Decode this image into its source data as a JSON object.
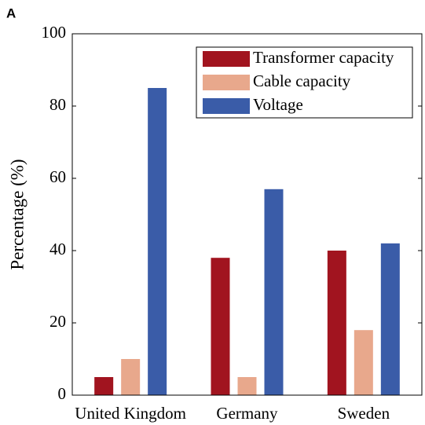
{
  "chart_data": {
    "type": "bar",
    "panel_label": "A",
    "ylabel": "Percentage (%)",
    "categories": [
      "United Kingdom",
      "Germany",
      "Sweden"
    ],
    "series": [
      {
        "name": "Transformer capacity",
        "color": "#a1141f",
        "values": [
          5,
          38,
          40
        ]
      },
      {
        "name": "Cable capacity",
        "color": "#e8a88c",
        "values": [
          10,
          5,
          18
        ]
      },
      {
        "name": "Voltage",
        "color": "#3a5ca8",
        "values": [
          85,
          57,
          42
        ]
      }
    ],
    "ylim": [
      0,
      100
    ],
    "yticks": [
      0,
      20,
      40,
      60,
      80,
      100
    ],
    "legend": "upper right"
  }
}
